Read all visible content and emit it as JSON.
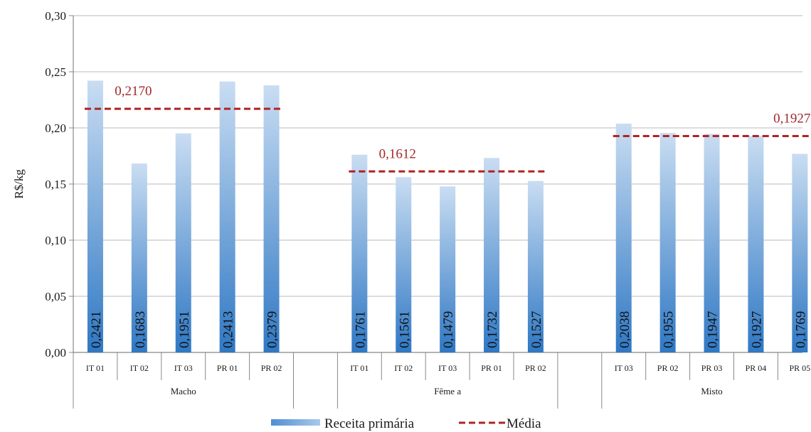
{
  "chart_data": {
    "type": "bar",
    "ylabel": "R$/kg",
    "ylim": [
      0,
      0.3
    ],
    "y_ticks": [
      "0,00",
      "0,05",
      "0,10",
      "0,15",
      "0,20",
      "0,25",
      "0,30"
    ],
    "grid": true,
    "legend_position": "bottom-center",
    "colors": {
      "bar_top": "#c9ddf2",
      "bar_bottom": "#2f78c4",
      "mean": "#b22222",
      "mean_label": "#a0282a",
      "grid": "#c8c8c8"
    },
    "groups": [
      {
        "name": "Macho",
        "categories": [
          "IT 01",
          "IT 02",
          "IT 03",
          "PR 01",
          "PR 02"
        ],
        "values": [
          0.2421,
          0.1683,
          0.1951,
          0.2413,
          0.2379
        ],
        "labels": [
          "0,2421",
          "0,1683",
          "0,1951",
          "0,2413",
          "0,2379"
        ],
        "mean": 0.217,
        "mean_label": "0,2170"
      },
      {
        "name": "Fême a",
        "categories": [
          "IT 01",
          "IT 02",
          "IT 03",
          "PR 01",
          "PR 02"
        ],
        "values": [
          0.1761,
          0.1561,
          0.1479,
          0.1732,
          0.1527
        ],
        "labels": [
          "0,1761",
          "0,1561",
          "0,1479",
          "0,1732",
          "0,1527"
        ],
        "mean": 0.1612,
        "mean_label": "0,1612"
      },
      {
        "name": "Misto",
        "categories": [
          "IT 03",
          "PR 02",
          "PR 03",
          "PR 04",
          "PR 05"
        ],
        "values": [
          0.2038,
          0.1955,
          0.1947,
          0.1927,
          0.1769
        ],
        "labels": [
          "0,2038",
          "0,1955",
          "0,1947",
          "0,1927",
          "0,1769"
        ],
        "mean": 0.1927,
        "mean_label": "0,1927"
      }
    ],
    "series": [
      {
        "name": "Receita primária"
      },
      {
        "name": "Média"
      }
    ]
  }
}
